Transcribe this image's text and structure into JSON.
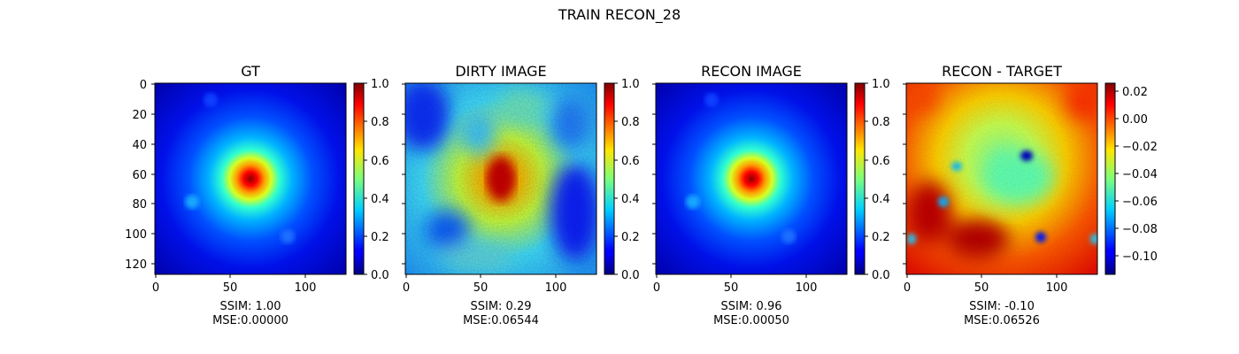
{
  "suptitle": "TRAIN RECON_28",
  "chart_data": [
    {
      "type": "heatmap",
      "title": "GT",
      "colormap": "jet",
      "image_size": [
        128,
        128
      ],
      "x_ticks": [
        "0",
        "50",
        "100"
      ],
      "y_ticks": [
        "0",
        "20",
        "40",
        "60",
        "80",
        "100",
        "120"
      ],
      "colorbar": {
        "range": [
          0.0,
          1.0
        ],
        "ticks": [
          "0.0",
          "0.2",
          "0.4",
          "0.6",
          "0.8",
          "1.0"
        ]
      },
      "caption": [
        "SSIM: 1.00",
        "MSE:0.00000"
      ]
    },
    {
      "type": "heatmap",
      "title": "DIRTY IMAGE",
      "colormap": "jet",
      "image_size": [
        128,
        128
      ],
      "x_ticks": [
        "0",
        "50",
        "100"
      ],
      "colorbar": {
        "range": [
          0.0,
          1.0
        ],
        "ticks": [
          "0.0",
          "0.2",
          "0.4",
          "0.6",
          "0.8",
          "1.0"
        ]
      },
      "caption": [
        "SSIM: 0.29",
        "MSE:0.06544"
      ]
    },
    {
      "type": "heatmap",
      "title": "RECON IMAGE",
      "colormap": "jet",
      "image_size": [
        128,
        128
      ],
      "x_ticks": [
        "0",
        "50",
        "100"
      ],
      "colorbar": {
        "range": [
          0.0,
          1.0
        ],
        "ticks": [
          "0.0",
          "0.2",
          "0.4",
          "0.6",
          "0.8",
          "1.0"
        ]
      },
      "caption": [
        "SSIM: 0.96",
        "MSE:0.00050"
      ]
    },
    {
      "type": "heatmap",
      "title": "RECON - TARGET",
      "colormap": "jet",
      "image_size": [
        128,
        128
      ],
      "x_ticks": [
        "0",
        "50",
        "100"
      ],
      "colorbar": {
        "range": [
          -0.113,
          0.028
        ],
        "ticks": [
          "0.02",
          "0.00",
          "−0.02",
          "−0.04",
          "−0.06",
          "−0.08",
          "−0.10"
        ]
      },
      "caption": [
        "SSIM: -0.10",
        "MSE:0.06526"
      ]
    }
  ]
}
